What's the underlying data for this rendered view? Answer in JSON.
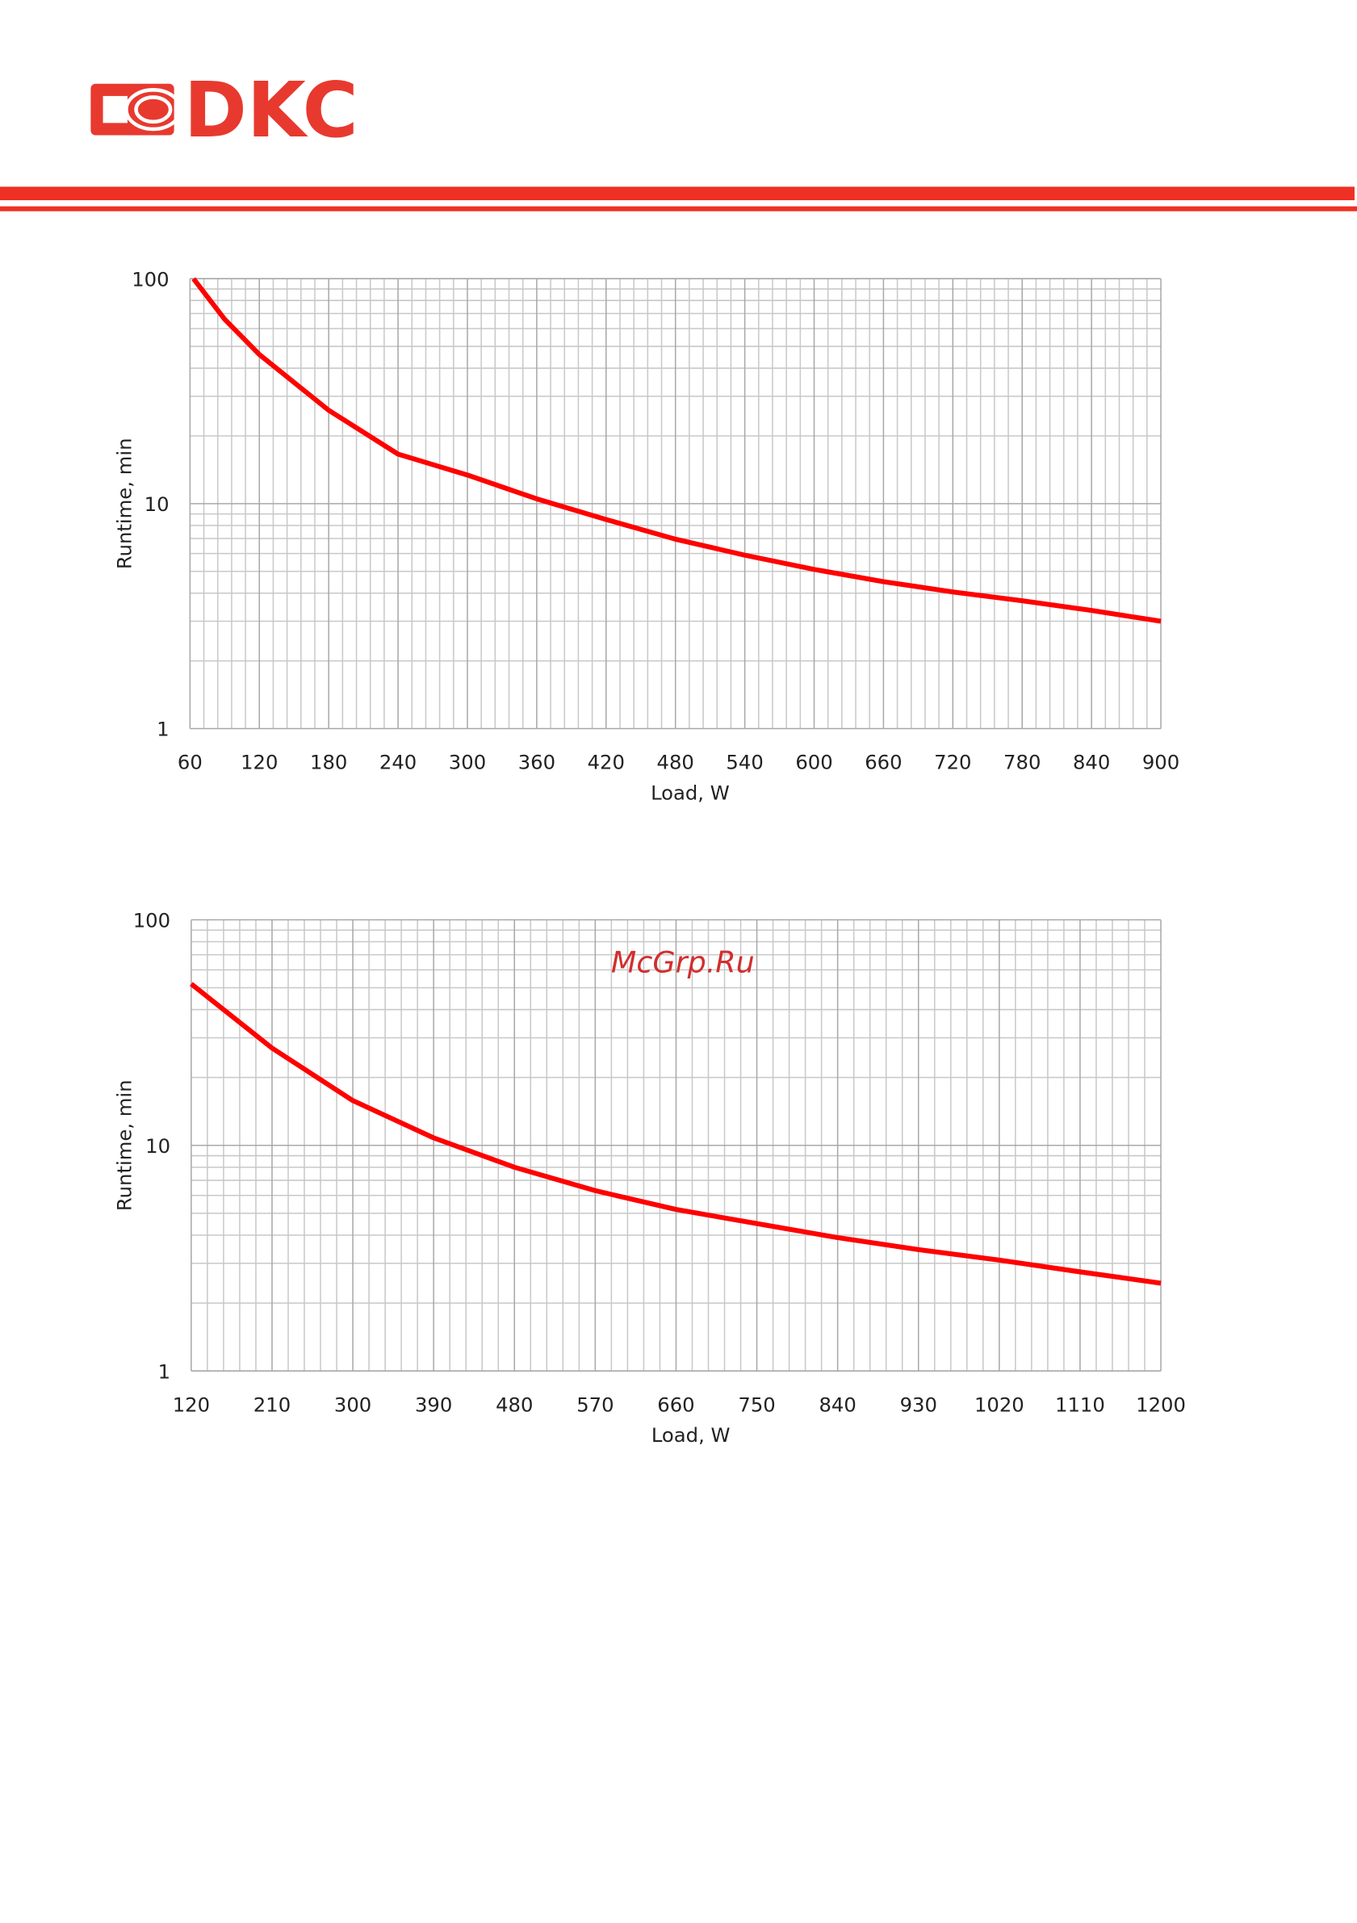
{
  "logo": "DKC",
  "watermark": "McGrp.Ru",
  "chart_data": [
    {
      "type": "line",
      "x_label": "Load, W",
      "y_label": "Runtime, min",
      "x": [
        63,
        90,
        120,
        180,
        240,
        300,
        360,
        420,
        480,
        540,
        600,
        660,
        720,
        780,
        840,
        900
      ],
      "values": [
        100,
        66,
        46,
        26,
        16.6,
        13.4,
        10.5,
        8.5,
        6.95,
        5.9,
        5.1,
        4.5,
        4.05,
        3.7,
        3.35,
        3.0
      ],
      "color": "#ff0000",
      "xlim": [
        60,
        900
      ],
      "xticks": [
        60,
        120,
        180,
        240,
        300,
        360,
        420,
        480,
        540,
        600,
        660,
        720,
        780,
        840,
        900
      ],
      "ylim": [
        1,
        100
      ],
      "yticks": [
        1,
        10,
        100
      ],
      "ylog": true,
      "grid": true,
      "xminor": 5
    },
    {
      "type": "line",
      "x_label": "Load, W",
      "y_label": "Runtime, min",
      "x": [
        120,
        210,
        300,
        390,
        480,
        570,
        660,
        750,
        840,
        930,
        1020,
        1110,
        1200
      ],
      "values": [
        52,
        27,
        15.8,
        10.8,
        8.0,
        6.3,
        5.2,
        4.5,
        3.9,
        3.45,
        3.1,
        2.75,
        2.45
      ],
      "color": "#ff0000",
      "xlim": [
        120,
        1200
      ],
      "xticks": [
        120,
        210,
        300,
        390,
        480,
        570,
        660,
        750,
        840,
        930,
        1020,
        1110,
        1200
      ],
      "ylim": [
        1,
        100
      ],
      "yticks": [
        1,
        10,
        100
      ],
      "ylog": true,
      "grid": true,
      "xminor": 5
    }
  ]
}
